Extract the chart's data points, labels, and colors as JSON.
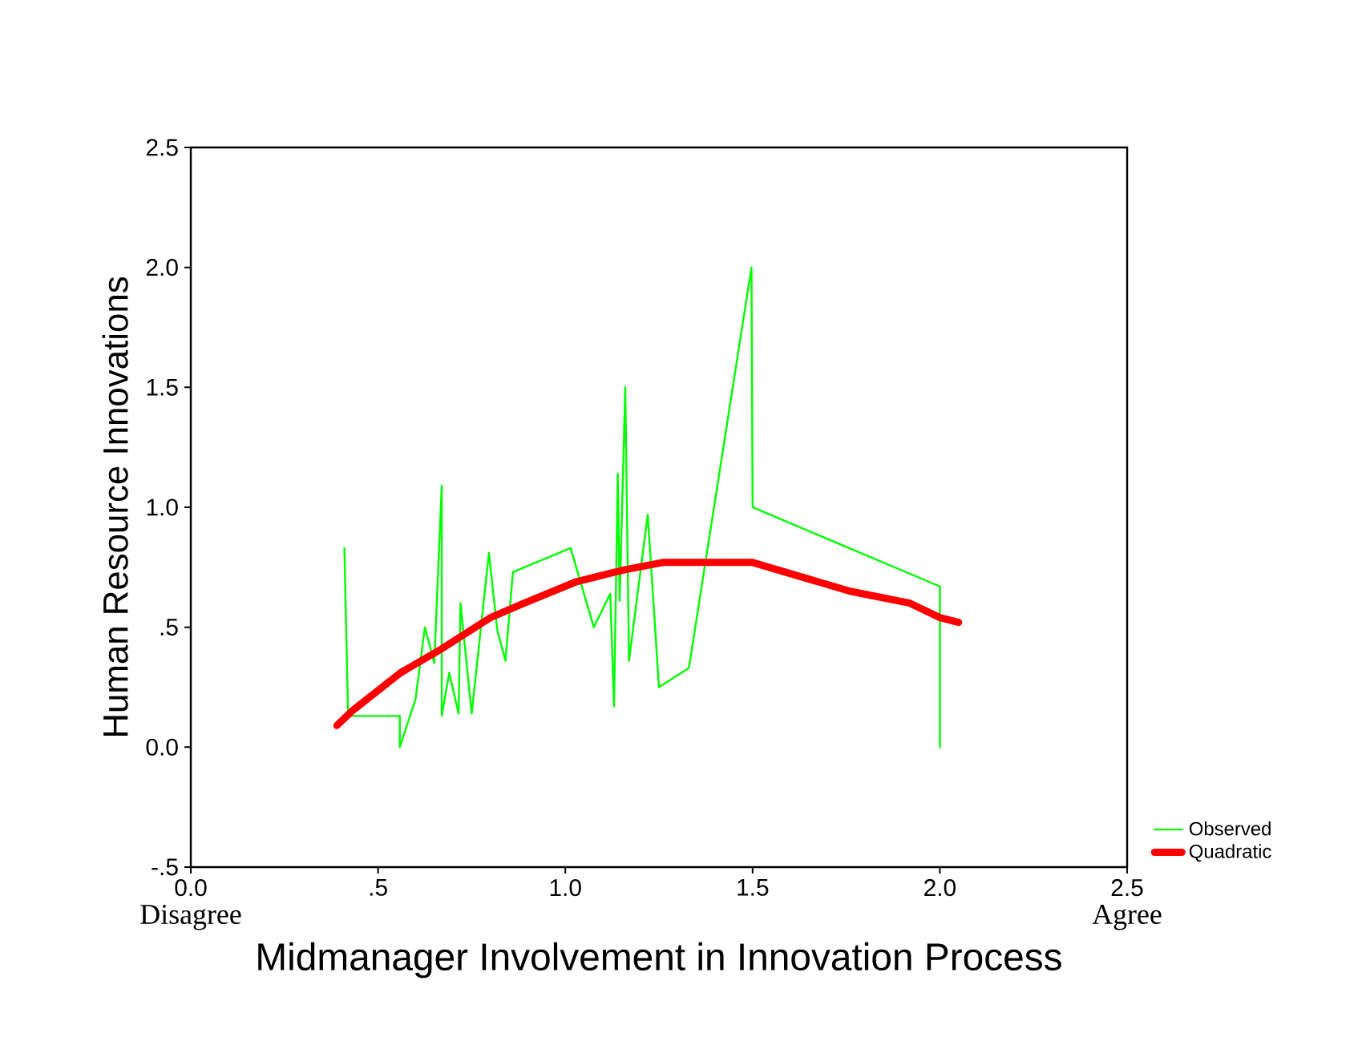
{
  "chart_data": {
    "type": "line",
    "xlabel": "Midmanager Involvement in Innovation Process",
    "ylabel": "Human Resource Innovations",
    "annotations": [
      "Disagree",
      "Agree"
    ],
    "xlim": [
      0,
      2.5
    ],
    "ylim": [
      -0.5,
      2.5
    ],
    "xticks": [
      {
        "value": 0,
        "label": "0.0"
      },
      {
        "value": 0.5,
        "label": ".5"
      },
      {
        "value": 1,
        "label": "1.0"
      },
      {
        "value": 1.5,
        "label": "1.5"
      },
      {
        "value": 2,
        "label": "2.0"
      },
      {
        "value": 2.5,
        "label": "2.5"
      }
    ],
    "yticks": [
      {
        "value": -0.5,
        "label": "-.5"
      },
      {
        "value": 0,
        "label": "0.0"
      },
      {
        "value": 0.5,
        "label": ".5"
      },
      {
        "value": 1,
        "label": "1.0"
      },
      {
        "value": 1.5,
        "label": "1.5"
      },
      {
        "value": 2,
        "label": "2.0"
      },
      {
        "value": 2.5,
        "label": "2.5"
      }
    ],
    "legend": "bottom right",
    "grid": false,
    "marker": "none",
    "series": [
      {
        "name": "Observed",
        "color": "#00ff00",
        "x": [
          0.41,
          0.42,
          0.558,
          0.558,
          0.6,
          0.625,
          0.65,
          0.67,
          0.67,
          0.69,
          0.715,
          0.72,
          0.75,
          0.796,
          0.818,
          0.84,
          0.86,
          1.014,
          1.076,
          1.12,
          1.13,
          1.14,
          1.145,
          1.16,
          1.17,
          1.22,
          1.25,
          1.33,
          1.497,
          1.5,
          2.0,
          2.0
        ],
        "values": [
          0.83,
          0.13,
          0.13,
          0.0,
          0.2,
          0.5,
          0.35,
          1.09,
          0.13,
          0.31,
          0.14,
          0.6,
          0.14,
          0.81,
          0.49,
          0.36,
          0.73,
          0.83,
          0.5,
          0.64,
          0.17,
          1.14,
          0.61,
          1.5,
          0.36,
          0.97,
          0.25,
          0.33,
          2.0,
          1.0,
          0.67,
          0.0
        ]
      },
      {
        "name": "Quadratic",
        "color": "#ff0000",
        "x": [
          0.39,
          0.43,
          0.56,
          0.67,
          0.8,
          0.89,
          1.03,
          1.16,
          1.26,
          1.46,
          1.5,
          1.76,
          1.92,
          2.0,
          2.05
        ],
        "values": [
          0.09,
          0.15,
          0.31,
          0.41,
          0.54,
          0.6,
          0.69,
          0.74,
          0.77,
          0.77,
          0.77,
          0.65,
          0.6,
          0.54,
          0.52
        ]
      }
    ]
  }
}
